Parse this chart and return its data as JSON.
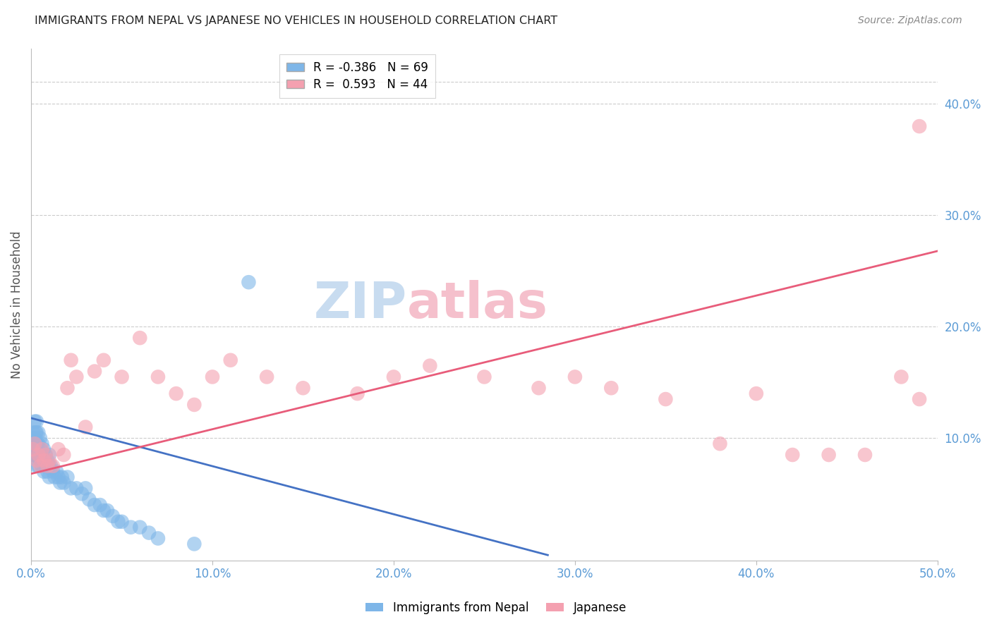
{
  "title": "IMMIGRANTS FROM NEPAL VS JAPANESE NO VEHICLES IN HOUSEHOLD CORRELATION CHART",
  "source": "Source: ZipAtlas.com",
  "ylabel": "No Vehicles in Household",
  "xlim": [
    0.0,
    0.5
  ],
  "ylim": [
    -0.01,
    0.45
  ],
  "xticks": [
    0.0,
    0.1,
    0.2,
    0.3,
    0.4,
    0.5
  ],
  "xticklabels": [
    "0.0%",
    "10.0%",
    "20.0%",
    "30.0%",
    "40.0%",
    "50.0%"
  ],
  "yticks_right": [
    0.1,
    0.2,
    0.3,
    0.4
  ],
  "yticklabels_right": [
    "10.0%",
    "20.0%",
    "30.0%",
    "40.0%"
  ],
  "legend_blue_r": "-0.386",
  "legend_blue_n": "69",
  "legend_pink_r": "0.593",
  "legend_pink_n": "44",
  "blue_color": "#7EB6E8",
  "pink_color": "#F4A0B0",
  "blue_line_color": "#4472C4",
  "pink_line_color": "#E85C7A",
  "axis_label_color": "#5B9BD5",
  "title_color": "#222222",
  "grid_color": "#CCCCCC",
  "watermark_zip_color": "#C8DCF0",
  "watermark_atlas_color": "#F5C0CC",
  "blue_scatter_x": [
    0.0008,
    0.001,
    0.001,
    0.0012,
    0.0012,
    0.0015,
    0.0015,
    0.0015,
    0.002,
    0.002,
    0.002,
    0.002,
    0.0025,
    0.0025,
    0.0025,
    0.003,
    0.003,
    0.003,
    0.003,
    0.003,
    0.0035,
    0.0035,
    0.004,
    0.004,
    0.004,
    0.004,
    0.005,
    0.005,
    0.005,
    0.006,
    0.006,
    0.006,
    0.007,
    0.007,
    0.007,
    0.008,
    0.008,
    0.009,
    0.009,
    0.01,
    0.01,
    0.01,
    0.011,
    0.012,
    0.013,
    0.014,
    0.015,
    0.016,
    0.017,
    0.018,
    0.02,
    0.022,
    0.025,
    0.028,
    0.03,
    0.032,
    0.035,
    0.038,
    0.04,
    0.042,
    0.045,
    0.048,
    0.05,
    0.055,
    0.06,
    0.065,
    0.07,
    0.09,
    0.12
  ],
  "blue_scatter_y": [
    0.095,
    0.09,
    0.085,
    0.105,
    0.095,
    0.1,
    0.09,
    0.085,
    0.115,
    0.1,
    0.095,
    0.085,
    0.105,
    0.095,
    0.085,
    0.115,
    0.105,
    0.095,
    0.085,
    0.075,
    0.095,
    0.085,
    0.105,
    0.095,
    0.085,
    0.075,
    0.1,
    0.09,
    0.08,
    0.095,
    0.085,
    0.075,
    0.09,
    0.08,
    0.07,
    0.085,
    0.075,
    0.08,
    0.07,
    0.085,
    0.075,
    0.065,
    0.075,
    0.07,
    0.065,
    0.07,
    0.065,
    0.06,
    0.065,
    0.06,
    0.065,
    0.055,
    0.055,
    0.05,
    0.055,
    0.045,
    0.04,
    0.04,
    0.035,
    0.035,
    0.03,
    0.025,
    0.025,
    0.02,
    0.02,
    0.015,
    0.01,
    0.005,
    0.24
  ],
  "pink_scatter_x": [
    0.001,
    0.002,
    0.003,
    0.004,
    0.005,
    0.006,
    0.007,
    0.008,
    0.009,
    0.01,
    0.012,
    0.015,
    0.018,
    0.02,
    0.022,
    0.025,
    0.03,
    0.035,
    0.04,
    0.05,
    0.06,
    0.07,
    0.08,
    0.09,
    0.1,
    0.11,
    0.13,
    0.15,
    0.18,
    0.2,
    0.22,
    0.25,
    0.28,
    0.3,
    0.32,
    0.35,
    0.38,
    0.4,
    0.42,
    0.44,
    0.46,
    0.48,
    0.49,
    0.49
  ],
  "pink_scatter_y": [
    0.09,
    0.095,
    0.08,
    0.085,
    0.075,
    0.09,
    0.08,
    0.085,
    0.075,
    0.08,
    0.075,
    0.09,
    0.085,
    0.145,
    0.17,
    0.155,
    0.11,
    0.16,
    0.17,
    0.155,
    0.19,
    0.155,
    0.14,
    0.13,
    0.155,
    0.17,
    0.155,
    0.145,
    0.14,
    0.155,
    0.165,
    0.155,
    0.145,
    0.155,
    0.145,
    0.135,
    0.095,
    0.14,
    0.085,
    0.085,
    0.085,
    0.155,
    0.135,
    0.38
  ],
  "blue_line_x": [
    0.0,
    0.285
  ],
  "blue_line_y": [
    0.118,
    -0.005
  ],
  "pink_line_x": [
    0.0,
    0.5
  ],
  "pink_line_y": [
    0.068,
    0.268
  ]
}
